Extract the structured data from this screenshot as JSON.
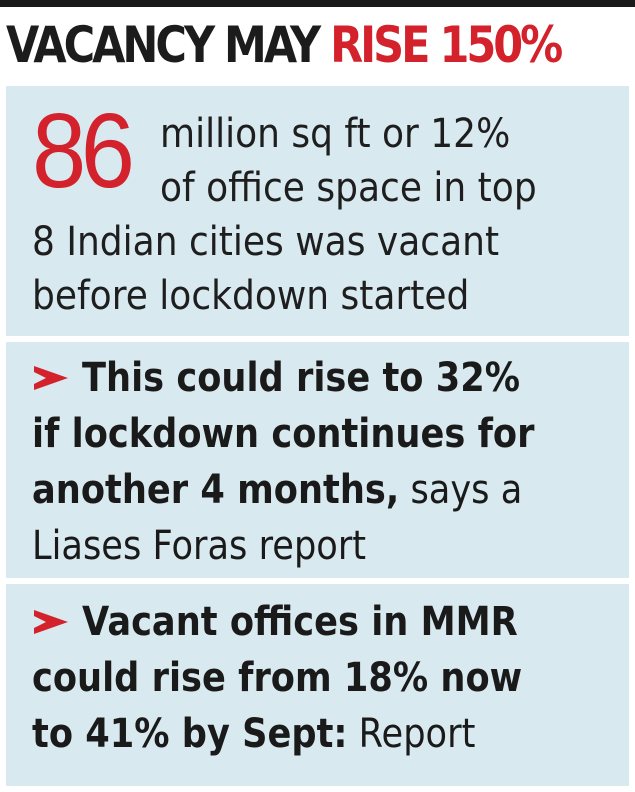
{
  "headline": {
    "part1": "VACANCY MAY ",
    "part2": "RISE 150%"
  },
  "stat": {
    "number": "86",
    "line1": "million sq ft or 12%",
    "line2": "of office space in top",
    "line3": "8 Indian cities was vacant",
    "line4": "before lockdown started"
  },
  "bullet1": {
    "line1": "This could rise to 32%",
    "line2": "if lockdown continues for",
    "line3_bold": "another 4 months,",
    "line3_rest": " says a",
    "line4": "Liases Foras report"
  },
  "bullet2": {
    "line1": "Vacant offices in MMR",
    "line2": "could rise from 18% now",
    "line3_bold": "to 41% by Sept:",
    "line3_rest": " Report"
  },
  "colors": {
    "accent_red": "#d3222c",
    "panel_blue": "#d8e9f0",
    "text_dark": "#1c1c1c"
  },
  "icons": {
    "bullet": "red-arrow-icon"
  }
}
